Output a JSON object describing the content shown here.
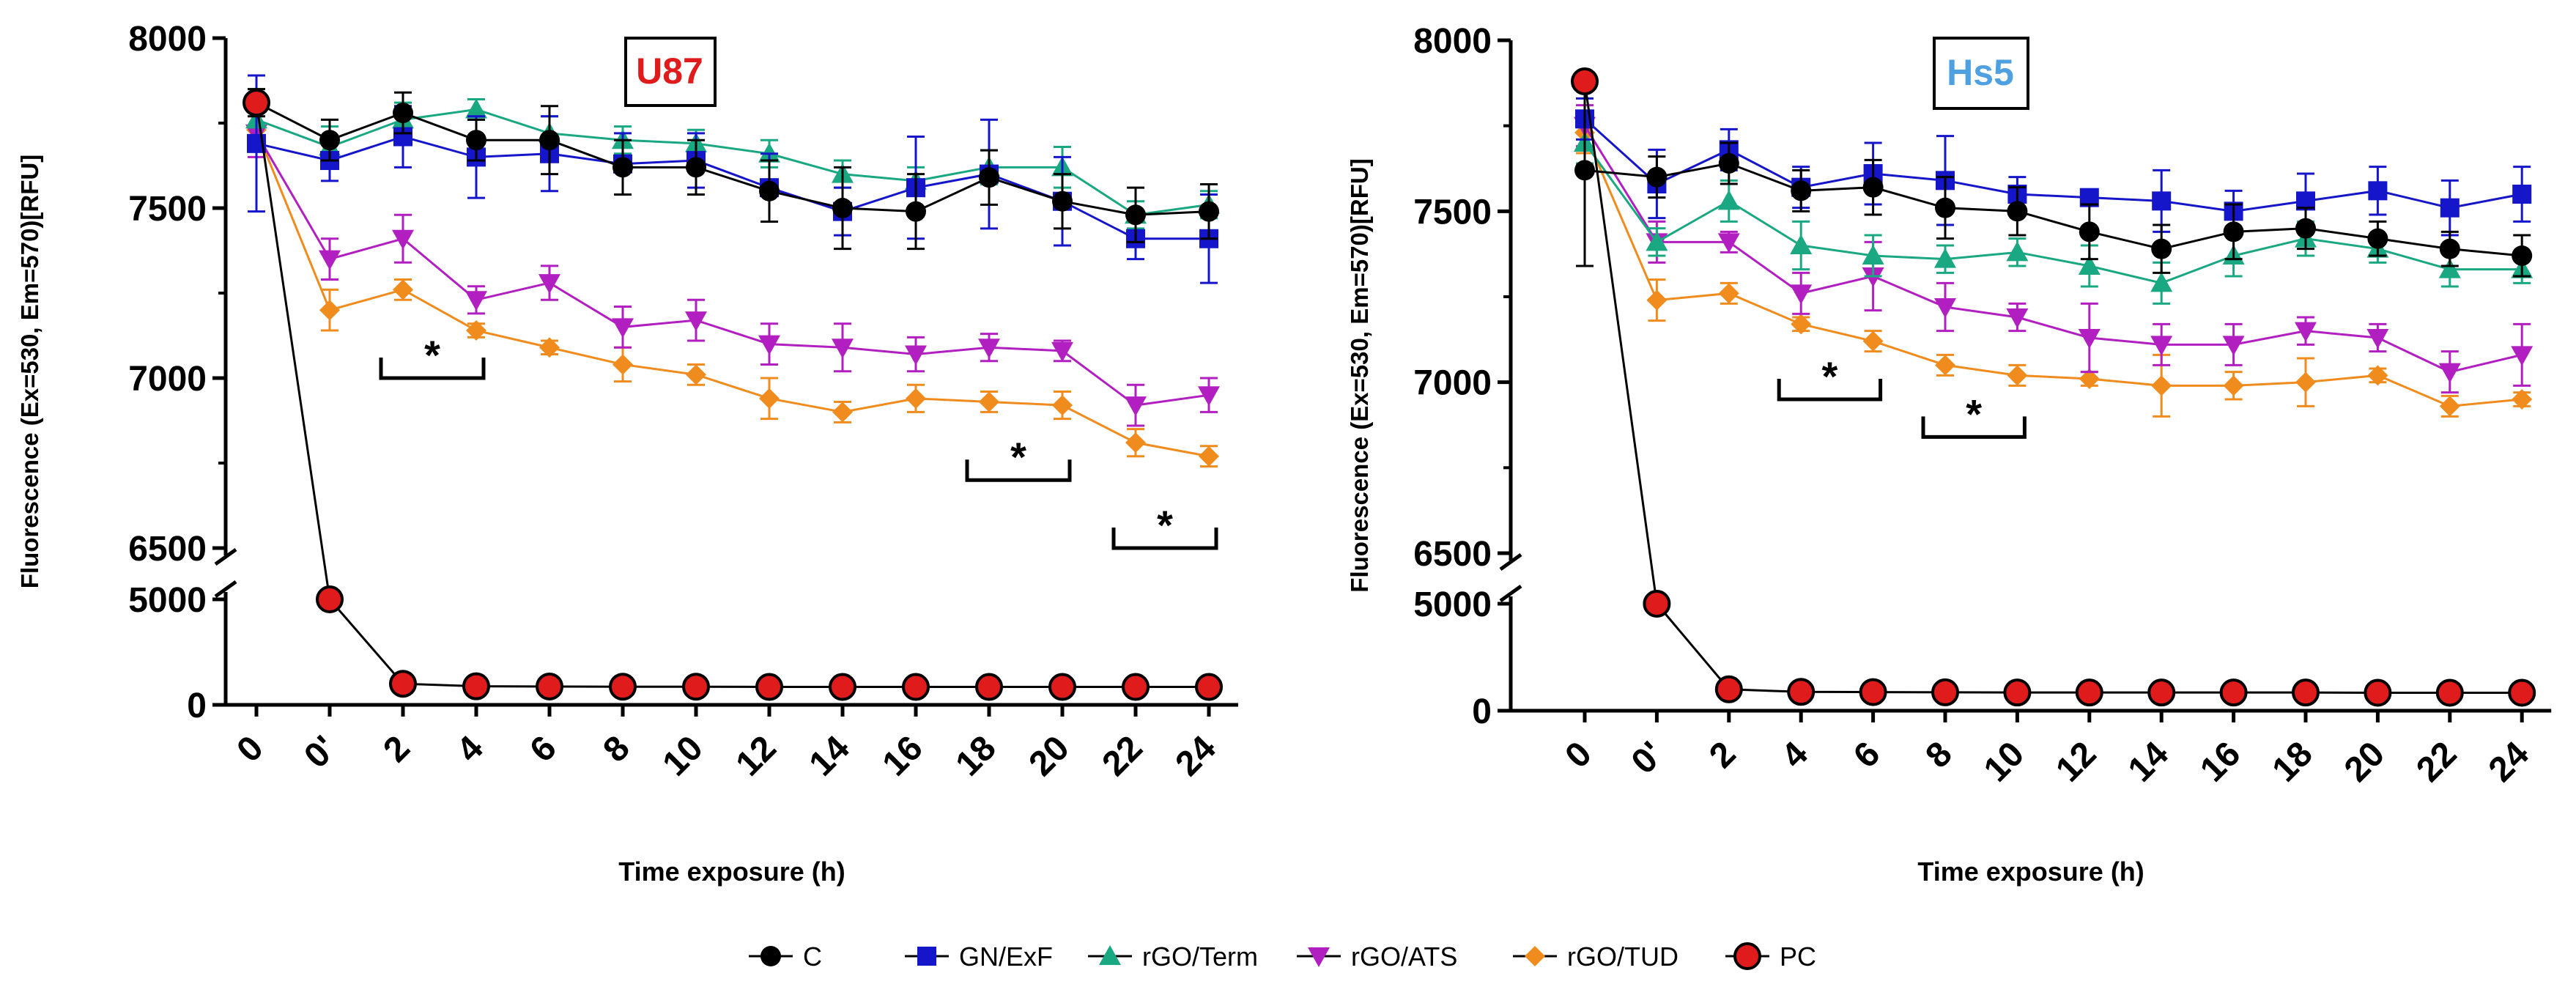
{
  "colors": {
    "C": "#000000",
    "GN/ExF": "#1515c9",
    "rGO/Term": "#1aa882",
    "rGO/ATS": "#b21fc0",
    "rGO/TUD": "#f08c1e",
    "PC": "#e01b1b",
    "title_u87": "#e01b1b",
    "title_hs5": "#4ea0e0"
  },
  "legend": [
    {
      "name": "C",
      "marker": "circle"
    },
    {
      "name": "GN/ExF",
      "marker": "square"
    },
    {
      "name": "rGO/Term",
      "marker": "triangle-up"
    },
    {
      "name": "rGO/ATS",
      "marker": "triangle-down"
    },
    {
      "name": "rGO/TUD",
      "marker": "diamond"
    },
    {
      "name": "PC",
      "marker": "big-circle"
    }
  ],
  "chart_data": [
    {
      "type": "line",
      "title": "U87",
      "xlabel": "Time exposure (h)",
      "ylabel": "Fluorescence (Ex=530, Em=570)[RFU]",
      "categories": [
        "0",
        "0'",
        "2",
        "4",
        "6",
        "8",
        "10",
        "12",
        "14",
        "16",
        "18",
        "20",
        "22",
        "24"
      ],
      "y_axis_upper": {
        "range": [
          6500,
          8000
        ],
        "ticks": [
          "6500",
          "7000",
          "7500",
          "8000"
        ]
      },
      "y_axis_lower": {
        "range": [
          0,
          5000
        ],
        "ticks": [
          "0",
          "5000"
        ]
      },
      "series": [
        {
          "name": "C",
          "values": [
            7810,
            7700,
            7780,
            7700,
            7700,
            7620,
            7620,
            7550,
            7500,
            7490,
            7590,
            7520,
            7480,
            7490
          ],
          "errors": [
            40,
            60,
            60,
            60,
            100,
            80,
            80,
            90,
            120,
            110,
            80,
            80,
            80,
            80
          ]
        },
        {
          "name": "GN/ExF",
          "values": [
            7690,
            7640,
            7710,
            7650,
            7660,
            7630,
            7640,
            7560,
            7490,
            7560,
            7600,
            7520,
            7410,
            7410
          ],
          "errors": [
            200,
            60,
            90,
            120,
            110,
            90,
            80,
            100,
            70,
            150,
            160,
            130,
            60,
            130
          ]
        },
        {
          "name": "rGO/Term",
          "values": [
            7760,
            7680,
            7760,
            7790,
            7720,
            7700,
            7690,
            7660,
            7600,
            7580,
            7620,
            7620,
            7480,
            7510
          ],
          "errors": [
            90,
            60,
            50,
            30,
            50,
            40,
            40,
            40,
            40,
            40,
            50,
            60,
            40,
            40
          ]
        },
        {
          "name": "rGO/ATS",
          "values": [
            7720,
            7350,
            7410,
            7230,
            7280,
            7150,
            7170,
            7100,
            7090,
            7070,
            7090,
            7080,
            6920,
            6950
          ],
          "errors": [
            70,
            60,
            70,
            40,
            50,
            60,
            60,
            60,
            70,
            50,
            40,
            30,
            60,
            50
          ]
        },
        {
          "name": "rGO/TUD",
          "values": [
            7730,
            7200,
            7260,
            7140,
            7090,
            7040,
            7010,
            6940,
            6900,
            6940,
            6930,
            6920,
            6810,
            6770
          ],
          "errors": [
            60,
            60,
            30,
            20,
            20,
            50,
            30,
            60,
            30,
            40,
            30,
            40,
            40,
            30
          ]
        },
        {
          "name": "PC",
          "values": [
            7810,
            5050,
            1000,
            880,
            870,
            860,
            860,
            850,
            850,
            850,
            850,
            850,
            850,
            850
          ],
          "errors": [
            0,
            200,
            100,
            60,
            60,
            50,
            50,
            50,
            50,
            50,
            50,
            50,
            50,
            50
          ]
        }
      ],
      "significance": [
        {
          "label": "*",
          "from": "2",
          "to": "4",
          "y": 7000
        },
        {
          "label": "*",
          "from": "18",
          "to": "20",
          "y": 6700
        },
        {
          "label": "*",
          "from": "22",
          "to": "24",
          "y": 6500
        }
      ]
    },
    {
      "type": "line",
      "title": "Hs5",
      "xlabel": "Time exposure (h)",
      "ylabel": "Fluorescence (Ex=530, Em=570)[RFU]",
      "categories": [
        "0",
        "0'",
        "2",
        "4",
        "6",
        "8",
        "10",
        "12",
        "14",
        "16",
        "18",
        "20",
        "22",
        "24"
      ],
      "y_axis_upper": {
        "range": [
          6500,
          8000
        ],
        "ticks": [
          "6500",
          "7000",
          "7500",
          "8000"
        ]
      },
      "y_axis_lower": {
        "range": [
          0,
          5000
        ],
        "ticks": [
          "0",
          "5000"
        ]
      },
      "series": [
        {
          "name": "C",
          "values": [
            7620,
            7600,
            7640,
            7560,
            7570,
            7510,
            7500,
            7440,
            7390,
            7440,
            7450,
            7420,
            7390,
            7370
          ],
          "errors": [
            280,
            60,
            60,
            60,
            80,
            90,
            70,
            80,
            70,
            80,
            60,
            50,
            50,
            60
          ]
        },
        {
          "name": "GN/ExF",
          "values": [
            7770,
            7580,
            7680,
            7570,
            7610,
            7590,
            7550,
            7540,
            7530,
            7500,
            7530,
            7560,
            7510,
            7550
          ],
          "errors": [
            60,
            100,
            60,
            60,
            90,
            130,
            50,
            20,
            90,
            60,
            80,
            70,
            80,
            80
          ]
        },
        {
          "name": "rGO/Term",
          "values": [
            7700,
            7410,
            7530,
            7400,
            7370,
            7360,
            7380,
            7340,
            7290,
            7370,
            7420,
            7390,
            7330,
            7330
          ],
          "errors": [
            60,
            40,
            60,
            70,
            60,
            40,
            40,
            60,
            60,
            60,
            50,
            40,
            50,
            40
          ]
        },
        {
          "name": "rGO/ATS",
          "values": [
            7750,
            7410,
            7410,
            7260,
            7310,
            7220,
            7190,
            7130,
            7110,
            7110,
            7150,
            7130,
            7030,
            7080
          ],
          "errors": [
            60,
            60,
            30,
            60,
            100,
            70,
            40,
            100,
            60,
            60,
            40,
            40,
            60,
            90
          ]
        },
        {
          "name": "rGO/TUD",
          "values": [
            7730,
            7240,
            7260,
            7170,
            7120,
            7050,
            7020,
            7010,
            6990,
            6990,
            7000,
            7020,
            6930,
            6950
          ],
          "errors": [
            60,
            60,
            30,
            20,
            30,
            30,
            30,
            20,
            90,
            40,
            70,
            20,
            30,
            20
          ]
        },
        {
          "name": "PC",
          "values": [
            7880,
            5050,
            1000,
            880,
            870,
            860,
            850,
            850,
            850,
            850,
            850,
            840,
            840,
            840
          ],
          "errors": [
            0,
            200,
            100,
            60,
            60,
            50,
            50,
            50,
            50,
            50,
            50,
            50,
            50,
            50
          ]
        }
      ],
      "significance": [
        {
          "label": "*",
          "from": "4",
          "to": "6",
          "y": 6950
        },
        {
          "label": "*",
          "from": "8",
          "to": "10",
          "y": 6840
        }
      ]
    }
  ]
}
